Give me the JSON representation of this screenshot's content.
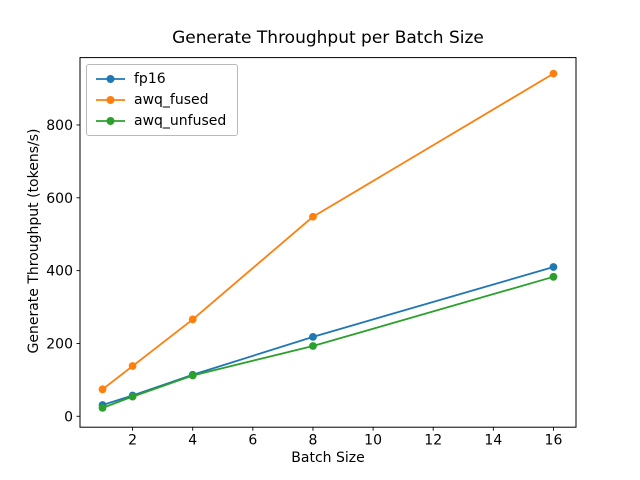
{
  "chart_data": {
    "type": "line",
    "title": "Generate Throughput per Batch Size",
    "xlabel": "Batch Size",
    "ylabel": "Generate Throughput (tokens/s)",
    "x": [
      1,
      2,
      4,
      8,
      16
    ],
    "series": [
      {
        "name": "fp16",
        "color": "#1f77b4",
        "values": [
          31,
          57,
          114,
          218,
          410
        ]
      },
      {
        "name": "awq_fused",
        "color": "#ff7f0e",
        "values": [
          74,
          138,
          266,
          548,
          941
        ]
      },
      {
        "name": "awq_unfused",
        "color": "#2ca02c",
        "values": [
          23,
          54,
          112,
          193,
          383
        ]
      }
    ],
    "xlim": [
      0.25,
      16.75
    ],
    "ylim": [
      -30,
      985
    ],
    "xticks": [
      2,
      4,
      6,
      8,
      10,
      12,
      14,
      16
    ],
    "yticks": [
      0,
      200,
      400,
      600,
      800
    ],
    "grid": false,
    "legend_position": "upper left",
    "marker": "o",
    "axis_color": "#000000"
  }
}
